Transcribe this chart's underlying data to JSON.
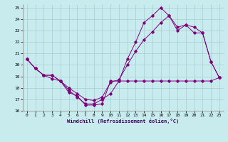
{
  "xlabel": "Windchill (Refroidissement éolien,°C)",
  "background_color": "#c8ecee",
  "grid_color": "#a8cdd0",
  "line_color": "#800080",
  "xlim": [
    -0.5,
    23.5
  ],
  "ylim": [
    16,
    25.3
  ],
  "yticks": [
    16,
    17,
    18,
    19,
    20,
    21,
    22,
    23,
    24,
    25
  ],
  "xticks": [
    0,
    1,
    2,
    3,
    4,
    5,
    6,
    7,
    8,
    9,
    10,
    11,
    12,
    13,
    14,
    15,
    16,
    17,
    18,
    19,
    20,
    21,
    22,
    23
  ],
  "series1_x": [
    0,
    1,
    2,
    3,
    4,
    5,
    6,
    7,
    8,
    9,
    10,
    11,
    12,
    13,
    14,
    15,
    16,
    17,
    18,
    19,
    20,
    21,
    22,
    23
  ],
  "series1_y": [
    20.5,
    19.7,
    19.1,
    18.8,
    18.6,
    17.6,
    17.3,
    16.5,
    16.5,
    16.6,
    18.6,
    18.6,
    18.6,
    18.6,
    18.6,
    18.6,
    18.6,
    18.6,
    18.6,
    18.6,
    18.6,
    18.6,
    18.6,
    18.9
  ],
  "series2_x": [
    0,
    1,
    2,
    3,
    4,
    5,
    6,
    7,
    8,
    9,
    10,
    11,
    12,
    13,
    14,
    15,
    16,
    17,
    18,
    19,
    20,
    21,
    22,
    23
  ],
  "series2_y": [
    20.5,
    19.7,
    19.1,
    19.1,
    18.6,
    17.8,
    17.2,
    16.6,
    16.6,
    17.0,
    17.5,
    18.6,
    20.5,
    22.0,
    23.7,
    24.3,
    25.0,
    24.3,
    23.3,
    23.5,
    22.8,
    22.8,
    20.3,
    18.9
  ],
  "series3_x": [
    0,
    1,
    2,
    3,
    4,
    5,
    6,
    7,
    8,
    9,
    10,
    11,
    12,
    13,
    14,
    15,
    16,
    17,
    18,
    19,
    20,
    21,
    22,
    23
  ],
  "series3_y": [
    20.5,
    19.7,
    19.1,
    19.1,
    18.6,
    18.0,
    17.5,
    17.0,
    16.9,
    17.2,
    18.5,
    18.7,
    20.0,
    21.2,
    22.2,
    22.9,
    23.7,
    24.3,
    23.0,
    23.5,
    23.3,
    22.8,
    20.3,
    18.9
  ]
}
